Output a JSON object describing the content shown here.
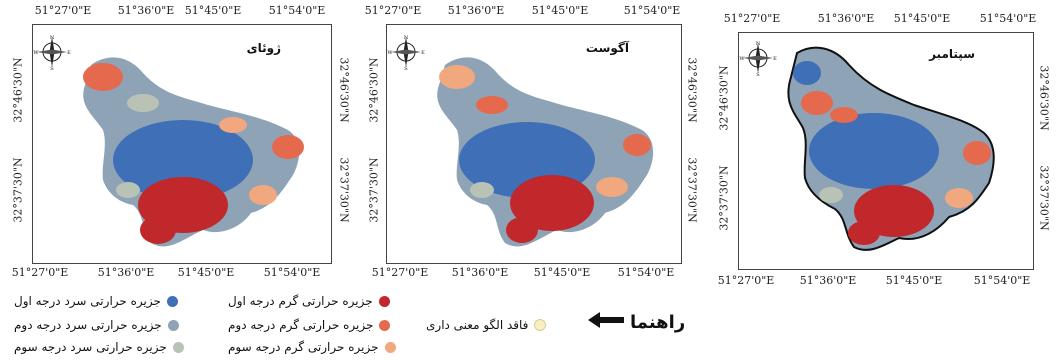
{
  "maps": [
    {
      "title": "ژوئای",
      "top_coords": [
        "51°27'0\"E",
        "51°36'0\"E",
        "51°45'0\"E",
        "51°54'0\"E"
      ],
      "bottom_coords": [
        "51°27'0\"E",
        "51°36'0\"E",
        "51°45'0\"E",
        "51°54'0\"E"
      ],
      "left_coords": [
        "32°46'30\"N",
        "32°37'30\"N"
      ],
      "right_coords": [
        "32°46'30\"N",
        "32°37'30\"N"
      ]
    },
    {
      "title": "آگوست",
      "top_coords": [
        "51°27'0\"E",
        "51°36'0\"E",
        "51°45'0\"E",
        "51°54'0\"E"
      ],
      "bottom_coords": [
        "51°27'0\"E",
        "51°36'0\"E",
        "51°45'0\"E",
        "51°54'0\"E"
      ],
      "left_coords": [
        "32°46'30\"N",
        "32°37'30\"N"
      ],
      "right_coords": [
        "32°46'30\"N",
        "32°37'30\"N"
      ]
    },
    {
      "title": "سپتامبر",
      "top_coords": [
        "51°27'0\"E",
        "51°36'0\"E",
        "51°45'0\"E",
        "51°54'0\"E"
      ],
      "bottom_coords": [
        "51°27'0\"E",
        "51°36'0\"E",
        "51°45'0\"E",
        "51°54'0\"E"
      ],
      "left_coords": [
        "32°46'30\"N",
        "32°37'30\"N"
      ],
      "right_coords": [
        "32°46'30\"N",
        "32°37'30\"N"
      ]
    }
  ],
  "compass_letters": {
    "n": "N",
    "s": "S",
    "e": "E",
    "w": "W"
  },
  "legend": {
    "title": "راهنما",
    "items": [
      {
        "label": "جزیره حرارتی سرد درجه اول",
        "color": "#3f6fb6"
      },
      {
        "label": "جزیره حرارتی گرم درجه اول",
        "color": "#c0282b"
      },
      {
        "label": "جزیره حرارتی سرد درجه دوم",
        "color": "#8fa3b6"
      },
      {
        "label": "جزیره حرارتی گرم درجه دوم",
        "color": "#e4694d"
      },
      {
        "label": "فاقد الگو معنی داری",
        "color": "#f7f0c2"
      },
      {
        "label": "جزیره حرارتی سرد درجه سوم",
        "color": "#b9c3b5"
      },
      {
        "label": "جزیره حرارتی گرم درجه سوم",
        "color": "#f1a87e"
      }
    ]
  }
}
